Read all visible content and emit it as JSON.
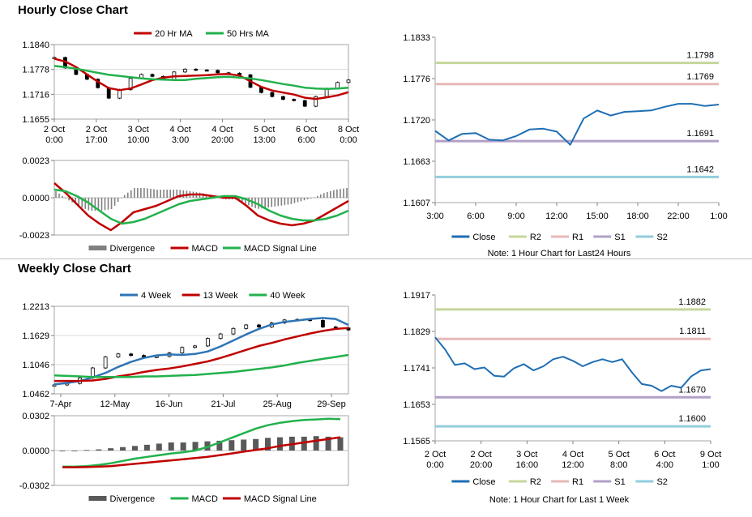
{
  "sections": {
    "hourly_title": "Hourly Close Chart",
    "weekly_title": "Weekly Close Chart"
  },
  "colors": {
    "red": "#c00000",
    "green": "#22b14c",
    "blue": "#2e75b6",
    "gray": "#808080",
    "r2": "#c4d79b",
    "r1": "#e6b8b7",
    "s1": "#b1a0c7",
    "s2": "#92cddc",
    "close": "#1f6eb4"
  },
  "chart_data": [
    {
      "id": "hourly_price",
      "type": "line",
      "legend": [
        "20 Hr MA",
        "50 Hrs MA"
      ],
      "yticks": [
        "1.1840",
        "1.1778",
        "1.1716",
        "1.1655"
      ],
      "ylim": [
        1.1655,
        1.184
      ],
      "xticks": [
        [
          "2 Oct",
          "0:00"
        ],
        [
          "2 Oct",
          "17:00"
        ],
        [
          "3 Oct",
          "10:00"
        ],
        [
          "4 Oct",
          "3:00"
        ],
        [
          "4 Oct",
          "20:00"
        ],
        [
          "5 Oct",
          "13:00"
        ],
        [
          "6 Oct",
          "6:00"
        ],
        [
          "8 Oct",
          "0:00"
        ]
      ],
      "series": [
        {
          "name": "20 Hr MA",
          "values": [
            1.1805,
            1.1798,
            1.1784,
            1.1766,
            1.1748,
            1.1732,
            1.1727,
            1.1731,
            1.1741,
            1.1752,
            1.1758,
            1.1761,
            1.1762,
            1.1763,
            1.1764,
            1.1766,
            1.1767,
            1.1763,
            1.1749,
            1.1735,
            1.1726,
            1.1721,
            1.1716,
            1.1708,
            1.1705,
            1.1709,
            1.1714,
            1.1722
          ]
        },
        {
          "name": "50 Hrs MA",
          "values": [
            1.1787,
            1.1784,
            1.178,
            1.1775,
            1.177,
            1.1765,
            1.1762,
            1.1759,
            1.1756,
            1.1754,
            1.1753,
            1.1752,
            1.1752,
            1.1755,
            1.1757,
            1.1759,
            1.176,
            1.1758,
            1.1756,
            1.1752,
            1.1747,
            1.1742,
            1.1738,
            1.1733,
            1.1731,
            1.173,
            1.1731,
            1.1733
          ]
        },
        {
          "name": "Close",
          "values": [
            1.1808,
            1.1782,
            1.1766,
            1.1754,
            1.1733,
            1.1707,
            1.1728,
            1.1756,
            1.1766,
            1.1761,
            1.1753,
            1.1772,
            1.1779,
            1.1777,
            1.1776,
            1.177,
            1.1769,
            1.1765,
            1.1734,
            1.1721,
            1.1711,
            1.1704,
            1.1701,
            1.1687,
            1.1711,
            1.1731,
            1.1746,
            1.1752
          ]
        }
      ]
    },
    {
      "id": "hourly_macd",
      "type": "line",
      "legend": [
        "Divergence",
        "MACD",
        "MACD Signal Line"
      ],
      "yticks": [
        "0.0023",
        "0.0000",
        "-0.0023"
      ],
      "ylim": [
        -0.0023,
        0.0023
      ],
      "series": [
        {
          "name": "MACD",
          "values": [
            0.0009,
            0.0003,
            -0.0004,
            -0.0011,
            -0.0016,
            -0.002,
            -0.0015,
            -0.0009,
            -0.0007,
            -0.0005,
            -0.0002,
            0.0001,
            0.0002,
            0.0002,
            0.0001,
            0.0,
            0.0,
            -0.0005,
            -0.0011,
            -0.0014,
            -0.0016,
            -0.0017,
            -0.0016,
            -0.0014,
            -0.001,
            -0.0006,
            -0.0002
          ]
        },
        {
          "name": "MACD Signal Line",
          "values": [
            0.0005,
            0.0004,
            0.0001,
            -0.0003,
            -0.0008,
            -0.0013,
            -0.0016,
            -0.0015,
            -0.0013,
            -0.001,
            -0.0007,
            -0.0004,
            -0.0002,
            -0.0001,
            0.0,
            0.0001,
            0.0001,
            -0.0001,
            -0.0004,
            -0.0008,
            -0.0011,
            -0.0013,
            -0.0014,
            -0.0014,
            -0.0013,
            -0.0011,
            -0.0008
          ]
        }
      ]
    },
    {
      "id": "hourly_sr",
      "type": "line",
      "levels": [
        {
          "name": "R2",
          "value": 1.1798,
          "label": "1.1798"
        },
        {
          "name": "R1",
          "value": 1.1769,
          "label": "1.1769"
        },
        {
          "name": "S1",
          "value": 1.1691,
          "label": "1.1691"
        },
        {
          "name": "S2",
          "value": 1.1642,
          "label": "1.1642"
        }
      ],
      "yticks": [
        "1.1833",
        "1.1776",
        "1.1720",
        "1.1663",
        "1.1607"
      ],
      "ylim": [
        1.1607,
        1.1833
      ],
      "xticks": [
        "3:00",
        "6:00",
        "9:00",
        "12:00",
        "15:00",
        "18:00",
        "22:00",
        "1:00"
      ],
      "close": [
        1.1705,
        1.1692,
        1.1701,
        1.1702,
        1.1693,
        1.1692,
        1.1698,
        1.1707,
        1.1708,
        1.1704,
        1.1686,
        1.1722,
        1.1733,
        1.1726,
        1.1731,
        1.1732,
        1.1733,
        1.1738,
        1.1742,
        1.1742,
        1.1739,
        1.1741
      ],
      "legend": [
        "Close",
        "R2",
        "R1",
        "S1",
        "S2"
      ],
      "note": "Note: 1 Hour Chart for Last24 Hours"
    },
    {
      "id": "weekly_price",
      "type": "line",
      "legend": [
        "4 Week",
        "13 Week",
        "40 Week"
      ],
      "yticks": [
        "1.2213",
        "1.1629",
        "1.1046",
        "1.0462"
      ],
      "ylim": [
        1.0462,
        1.2213
      ],
      "xticks": [
        "7-Apr",
        "12-May",
        "16-Jun",
        "21-Jul",
        "25-Aug",
        "29-Sep"
      ],
      "series": [
        {
          "name": "4 Week",
          "values": [
            1.065,
            1.068,
            1.072,
            1.079,
            1.088,
            1.1,
            1.11,
            1.118,
            1.123,
            1.125,
            1.124,
            1.126,
            1.131,
            1.141,
            1.153,
            1.165,
            1.176,
            1.185,
            1.19,
            1.193,
            1.196,
            1.198,
            1.196,
            1.184
          ]
        },
        {
          "name": "13 Week",
          "values": [
            1.072,
            1.072,
            1.072,
            1.073,
            1.076,
            1.081,
            1.085,
            1.09,
            1.094,
            1.097,
            1.101,
            1.106,
            1.111,
            1.118,
            1.126,
            1.134,
            1.142,
            1.148,
            1.155,
            1.161,
            1.167,
            1.172,
            1.176,
            1.178
          ]
        },
        {
          "name": "40 Week",
          "values": [
            1.083,
            1.082,
            1.081,
            1.08,
            1.08,
            1.08,
            1.08,
            1.081,
            1.081,
            1.082,
            1.083,
            1.084,
            1.086,
            1.088,
            1.09,
            1.093,
            1.096,
            1.099,
            1.103,
            1.108,
            1.112,
            1.116,
            1.12,
            1.124
          ]
        },
        {
          "name": "Close",
          "values": [
            1.064,
            1.067,
            1.078,
            1.098,
            1.12,
            1.126,
            1.123,
            1.12,
            1.121,
            1.128,
            1.139,
            1.142,
            1.157,
            1.166,
            1.177,
            1.184,
            1.18,
            1.188,
            1.194,
            1.195,
            1.193,
            1.18,
            1.178,
            1.174
          ]
        }
      ]
    },
    {
      "id": "weekly_macd",
      "type": "bar",
      "legend": [
        "Divergence",
        "MACD",
        "MACD Signal Line"
      ],
      "yticks": [
        "0.0302",
        "0.0000",
        "-0.0302"
      ],
      "ylim": [
        -0.0302,
        0.0302
      ],
      "series": [
        {
          "name": "Divergence",
          "values": [
            0.0,
            0.0,
            0.0005,
            0.001,
            0.002,
            0.003,
            0.004,
            0.005,
            0.006,
            0.007,
            0.007,
            0.0075,
            0.008,
            0.0085,
            0.009,
            0.0095,
            0.01,
            0.011,
            0.0115,
            0.012,
            0.012,
            0.0125,
            0.012,
            0.0115
          ]
        },
        {
          "name": "MACD",
          "values": [
            -0.014,
            -0.014,
            -0.0135,
            -0.0125,
            -0.011,
            -0.009,
            -0.007,
            -0.0055,
            -0.004,
            -0.0025,
            -0.0015,
            0.0,
            0.003,
            0.007,
            0.011,
            0.015,
            0.019,
            0.022,
            0.024,
            0.0255,
            0.0265,
            0.027,
            0.0275,
            0.0272
          ]
        },
        {
          "name": "MACD Signal Line",
          "values": [
            -0.0145,
            -0.0145,
            -0.0143,
            -0.014,
            -0.0135,
            -0.0125,
            -0.0115,
            -0.0105,
            -0.0095,
            -0.0085,
            -0.0075,
            -0.0065,
            -0.0055,
            -0.004,
            -0.0025,
            -0.001,
            0.0005,
            0.002,
            0.004,
            0.0055,
            0.007,
            0.0085,
            0.01,
            0.0115
          ]
        }
      ]
    },
    {
      "id": "weekly_sr",
      "type": "line",
      "levels": [
        {
          "name": "R2",
          "value": 1.1882,
          "label": "1.1882"
        },
        {
          "name": "R1",
          "value": 1.1811,
          "label": "1.1811"
        },
        {
          "name": "S1",
          "value": 1.167,
          "label": "1.1670"
        },
        {
          "name": "S2",
          "value": 1.16,
          "label": "1.1600"
        }
      ],
      "yticks": [
        "1.1917",
        "1.1829",
        "1.1741",
        "1.1653",
        "1.1565"
      ],
      "ylim": [
        1.1565,
        1.1917
      ],
      "xticks": [
        [
          "2 Oct",
          "0:00"
        ],
        [
          "2 Oct",
          "20:00"
        ],
        [
          "3 Oct",
          "16:00"
        ],
        [
          "4 Oct",
          "12:00"
        ],
        [
          "5 Oct",
          "8:00"
        ],
        [
          "6 Oct",
          "4:00"
        ],
        [
          "9 Oct",
          "1:00"
        ]
      ],
      "close": [
        1.1815,
        1.1786,
        1.1748,
        1.1752,
        1.1738,
        1.1742,
        1.1722,
        1.172,
        1.174,
        1.175,
        1.1735,
        1.1745,
        1.1762,
        1.1768,
        1.1758,
        1.1745,
        1.1755,
        1.1762,
        1.1755,
        1.1762,
        1.173,
        1.1702,
        1.1698,
        1.1685,
        1.1698,
        1.1693,
        1.172,
        1.1735,
        1.1738
      ],
      "legend": [
        "Close",
        "R2",
        "R1",
        "S1",
        "S2"
      ],
      "note": "Note: 1 Hour Chart for Last 1 Week"
    }
  ]
}
